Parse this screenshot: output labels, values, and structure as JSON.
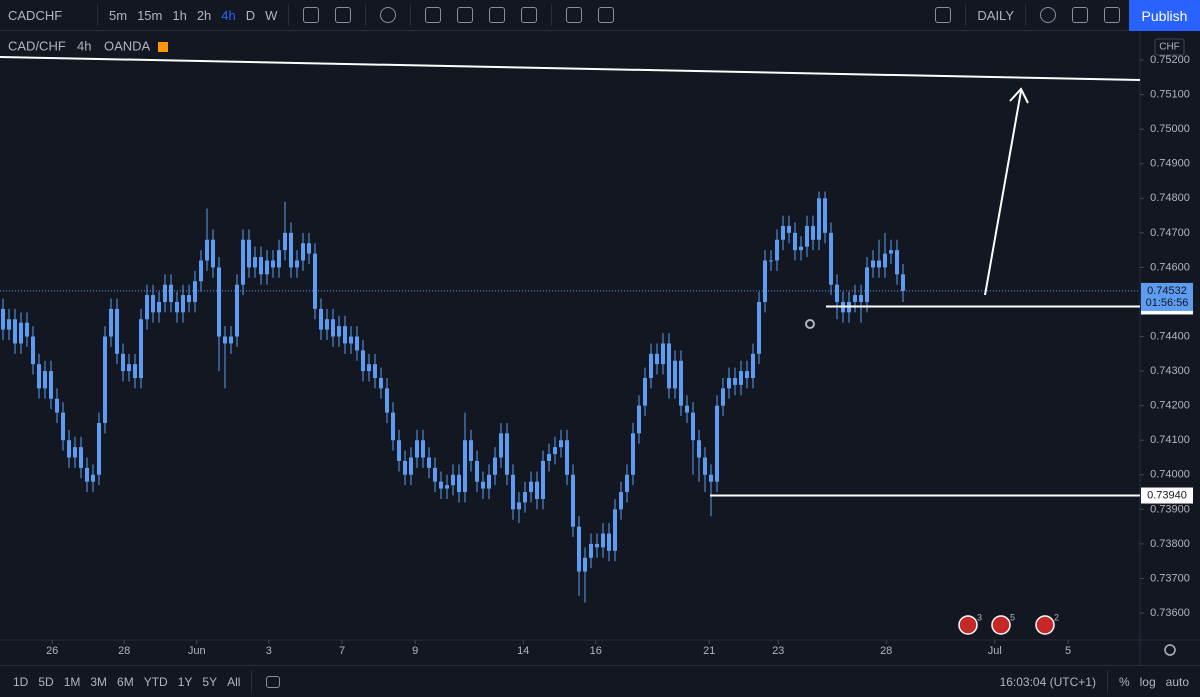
{
  "toolbar": {
    "symbol": "CADCHF",
    "intervals": [
      "5m",
      "15m",
      "1h",
      "2h",
      "4h",
      "D",
      "W"
    ],
    "layout_name": "DAILY",
    "publish": "Publish"
  },
  "legend": {
    "symbol": "CAD/CHF",
    "interval": "4h",
    "source": "OANDA"
  },
  "chart_data": {
    "type": "candlestick",
    "color": "#5d9cf0",
    "currency": "CHF",
    "open": [
      0.7448,
      0.7442,
      0.7445,
      0.7438,
      0.7444,
      0.744,
      0.7432,
      0.7425,
      0.743,
      0.7422,
      0.7418,
      0.741,
      0.7405,
      0.7408,
      0.7402,
      0.7398,
      0.74,
      0.7415,
      0.744,
      0.7448,
      0.7435,
      0.743,
      0.7432,
      0.7428,
      0.7445,
      0.7452,
      0.7447,
      0.745,
      0.7455,
      0.745,
      0.7447,
      0.7452,
      0.745,
      0.7456,
      0.7462,
      0.7468,
      0.746,
      0.744,
      0.7438,
      0.744,
      0.7455,
      0.7468,
      0.746,
      0.7463,
      0.7458,
      0.7462,
      0.746,
      0.7465,
      0.747,
      0.746,
      0.7462,
      0.7467,
      0.7464,
      0.7448,
      0.7442,
      0.7445,
      0.744,
      0.7443,
      0.7438,
      0.744,
      0.7436,
      0.743,
      0.7432,
      0.7428,
      0.7425,
      0.7418,
      0.741,
      0.7404,
      0.74,
      0.7405,
      0.741,
      0.7405,
      0.7402,
      0.7398,
      0.7396,
      0.7397,
      0.74,
      0.7395,
      0.741,
      0.7404,
      0.7398,
      0.7396,
      0.74,
      0.7405,
      0.7412,
      0.74,
      0.739,
      0.7392,
      0.7395,
      0.7398,
      0.7393,
      0.7404,
      0.7406,
      0.7408,
      0.741,
      0.74,
      0.7385,
      0.7372,
      0.7376,
      0.738,
      0.7379,
      0.7383,
      0.7378,
      0.739,
      0.7395,
      0.74,
      0.7412,
      0.742,
      0.7428,
      0.7435,
      0.7432,
      0.7438,
      0.7425,
      0.7433,
      0.742,
      0.7418,
      0.741,
      0.7405,
      0.74,
      0.7398,
      0.742,
      0.7425,
      0.7428,
      0.7426,
      0.743,
      0.7428,
      0.7435,
      0.745,
      0.7462,
      0.7462,
      0.7468,
      0.7472,
      0.747,
      0.7465,
      0.7466,
      0.7472,
      0.7468,
      0.748,
      0.747,
      0.7455,
      0.745,
      0.7447,
      0.745,
      0.7452,
      0.745,
      0.746,
      0.7462,
      0.746,
      0.7464,
      0.7465,
      0.7458
    ],
    "high": [
      0.7451,
      0.7448,
      0.7448,
      0.7447,
      0.7447,
      0.7443,
      0.7435,
      0.7433,
      0.7433,
      0.7425,
      0.7421,
      0.7413,
      0.7411,
      0.7411,
      0.7405,
      0.7403,
      0.7418,
      0.7443,
      0.7451,
      0.7451,
      0.7438,
      0.7435,
      0.7435,
      0.7448,
      0.7455,
      0.7455,
      0.7453,
      0.7458,
      0.7458,
      0.7453,
      0.7455,
      0.7455,
      0.7459,
      0.7465,
      0.7477,
      0.7471,
      0.7463,
      0.7443,
      0.7443,
      0.7458,
      0.7471,
      0.7471,
      0.7466,
      0.7466,
      0.7465,
      0.7465,
      0.7468,
      0.7479,
      0.7473,
      0.7465,
      0.747,
      0.747,
      0.7467,
      0.7451,
      0.7448,
      0.7448,
      0.7446,
      0.7446,
      0.7443,
      0.7443,
      0.7439,
      0.7435,
      0.7435,
      0.7431,
      0.7428,
      0.7421,
      0.7413,
      0.7407,
      0.7408,
      0.7413,
      0.7413,
      0.7408,
      0.7405,
      0.7401,
      0.74,
      0.7403,
      0.7403,
      0.7418,
      0.7413,
      0.7407,
      0.7401,
      0.7403,
      0.7408,
      0.7415,
      0.7415,
      0.7403,
      0.7395,
      0.7398,
      0.7401,
      0.7401,
      0.7407,
      0.7409,
      0.7411,
      0.7413,
      0.7413,
      0.7403,
      0.7388,
      0.7379,
      0.7383,
      0.7383,
      0.7386,
      0.7386,
      0.7393,
      0.7398,
      0.7403,
      0.7415,
      0.7423,
      0.7431,
      0.7438,
      0.7438,
      0.7441,
      0.7441,
      0.7436,
      0.7436,
      0.7423,
      0.7421,
      0.7413,
      0.7408,
      0.7403,
      0.7423,
      0.7428,
      0.7431,
      0.7431,
      0.7433,
      0.7433,
      0.7438,
      0.7453,
      0.7465,
      0.7465,
      0.7471,
      0.7475,
      0.7475,
      0.7473,
      0.7469,
      0.7475,
      0.7475,
      0.7482,
      0.7482,
      0.7473,
      0.7458,
      0.7453,
      0.7453,
      0.7455,
      0.7455,
      0.7463,
      0.7465,
      0.7468,
      0.747,
      0.7468,
      0.7468,
      0.7461
    ],
    "low": [
      0.7439,
      0.7439,
      0.7435,
      0.7435,
      0.7437,
      0.7429,
      0.7422,
      0.7422,
      0.7419,
      0.7415,
      0.7407,
      0.7402,
      0.7402,
      0.7399,
      0.7395,
      0.7395,
      0.7397,
      0.7412,
      0.7437,
      0.7432,
      0.7427,
      0.7427,
      0.7425,
      0.7425,
      0.7442,
      0.7444,
      0.7444,
      0.7447,
      0.7447,
      0.7444,
      0.7444,
      0.7447,
      0.7447,
      0.7453,
      0.7459,
      0.7457,
      0.743,
      0.7425,
      0.7435,
      0.7437,
      0.7452,
      0.7457,
      0.7457,
      0.7455,
      0.7455,
      0.7457,
      0.7457,
      0.7462,
      0.7457,
      0.7457,
      0.7459,
      0.7461,
      0.7445,
      0.7439,
      0.7439,
      0.7437,
      0.7437,
      0.7435,
      0.7435,
      0.7433,
      0.7427,
      0.7427,
      0.7425,
      0.7422,
      0.7415,
      0.7407,
      0.7401,
      0.7397,
      0.7397,
      0.7402,
      0.7402,
      0.7399,
      0.7395,
      0.7393,
      0.7393,
      0.7394,
      0.7392,
      0.7392,
      0.7401,
      0.7395,
      0.7393,
      0.7393,
      0.7397,
      0.7402,
      0.7397,
      0.7387,
      0.7386,
      0.7389,
      0.7392,
      0.739,
      0.739,
      0.7401,
      0.7403,
      0.7405,
      0.7397,
      0.7382,
      0.7365,
      0.7363,
      0.7373,
      0.7376,
      0.7376,
      0.7375,
      0.7375,
      0.7387,
      0.7392,
      0.7397,
      0.7409,
      0.7417,
      0.7425,
      0.7429,
      0.7429,
      0.7422,
      0.7422,
      0.7417,
      0.7415,
      0.74,
      0.7398,
      0.7395,
      0.7388,
      0.7395,
      0.7417,
      0.7422,
      0.7423,
      0.7423,
      0.7425,
      0.7425,
      0.7432,
      0.7447,
      0.7459,
      0.7459,
      0.7465,
      0.7467,
      0.7462,
      0.7462,
      0.7463,
      0.7465,
      0.7465,
      0.7467,
      0.7452,
      0.7445,
      0.7444,
      0.7444,
      0.7447,
      0.7444,
      0.7447,
      0.7457,
      0.7457,
      0.7457,
      0.7461,
      0.7455,
      0.745
    ],
    "close": [
      0.7442,
      0.7445,
      0.7438,
      0.7444,
      0.744,
      0.7432,
      0.7425,
      0.743,
      0.7422,
      0.7418,
      0.741,
      0.7405,
      0.7408,
      0.7402,
      0.7398,
      0.74,
      0.7415,
      0.744,
      0.7448,
      0.7435,
      0.743,
      0.7432,
      0.7428,
      0.7445,
      0.7452,
      0.7447,
      0.745,
      0.7455,
      0.745,
      0.7447,
      0.7452,
      0.745,
      0.7456,
      0.7462,
      0.7468,
      0.746,
      0.744,
      0.7438,
      0.744,
      0.7455,
      0.7468,
      0.746,
      0.7463,
      0.7458,
      0.7462,
      0.746,
      0.7465,
      0.747,
      0.746,
      0.7462,
      0.7467,
      0.7464,
      0.7448,
      0.7442,
      0.7445,
      0.744,
      0.7443,
      0.7438,
      0.744,
      0.7436,
      0.743,
      0.7432,
      0.7428,
      0.7425,
      0.7418,
      0.741,
      0.7404,
      0.74,
      0.7405,
      0.741,
      0.7405,
      0.7402,
      0.7398,
      0.7396,
      0.7397,
      0.74,
      0.7395,
      0.741,
      0.7404,
      0.7398,
      0.7396,
      0.74,
      0.7405,
      0.7412,
      0.74,
      0.739,
      0.7392,
      0.7395,
      0.7398,
      0.7393,
      0.7404,
      0.7406,
      0.7408,
      0.741,
      0.74,
      0.7385,
      0.7372,
      0.7376,
      0.738,
      0.7379,
      0.7383,
      0.7378,
      0.739,
      0.7395,
      0.74,
      0.7412,
      0.742,
      0.7428,
      0.7435,
      0.7432,
      0.7438,
      0.7425,
      0.7433,
      0.742,
      0.7418,
      0.741,
      0.7405,
      0.74,
      0.7398,
      0.742,
      0.7425,
      0.7428,
      0.7426,
      0.743,
      0.7428,
      0.7435,
      0.745,
      0.7462,
      0.7462,
      0.7468,
      0.7472,
      0.747,
      0.7465,
      0.7466,
      0.7472,
      0.7468,
      0.748,
      0.747,
      0.7455,
      0.745,
      0.7447,
      0.745,
      0.7452,
      0.745,
      0.746,
      0.7462,
      0.746,
      0.7464,
      0.7465,
      0.7458,
      0.74532
    ],
    "xlim": [
      -0.5,
      189.5
    ],
    "xticks": [
      {
        "value": 8.2,
        "label": "26"
      },
      {
        "value": 20.2,
        "label": "28"
      },
      {
        "value": 32.3,
        "label": "Jun"
      },
      {
        "value": 44.3,
        "label": "3"
      },
      {
        "value": 56.5,
        "label": "7"
      },
      {
        "value": 68.7,
        "label": "9"
      },
      {
        "value": 86.7,
        "label": "14"
      },
      {
        "value": 98.8,
        "label": "16"
      },
      {
        "value": 117.7,
        "label": "21"
      },
      {
        "value": 129.2,
        "label": "23"
      },
      {
        "value": 147.2,
        "label": "28"
      },
      {
        "value": 165.3,
        "label": "Jul"
      },
      {
        "value": 177.5,
        "label": "5"
      }
    ],
    "ylim": [
      0.73522,
      0.75284
    ],
    "yticks": [
      {
        "value": 0.752,
        "label": "0.75200"
      },
      {
        "value": 0.751,
        "label": "0.75100"
      },
      {
        "value": 0.75,
        "label": "0.75000"
      },
      {
        "value": 0.749,
        "label": "0.74900"
      },
      {
        "value": 0.748,
        "label": "0.74800"
      },
      {
        "value": 0.747,
        "label": "0.74700"
      },
      {
        "value": 0.746,
        "label": "0.74600"
      },
      {
        "value": 0.745,
        "label": "0.74500"
      },
      {
        "value": 0.744,
        "label": "0.74400"
      },
      {
        "value": 0.743,
        "label": "0.74300"
      },
      {
        "value": 0.742,
        "label": "0.74200"
      },
      {
        "value": 0.741,
        "label": "0.74100"
      },
      {
        "value": 0.74,
        "label": "0.74000"
      },
      {
        "value": 0.739,
        "label": "0.73900"
      },
      {
        "value": 0.738,
        "label": "0.73800"
      },
      {
        "value": 0.737,
        "label": "0.73700"
      },
      {
        "value": 0.736,
        "label": "0.73600"
      }
    ],
    "last_price": 0.74532,
    "countdown": "01:56:56",
    "levels": [
      0.74487,
      {
        "value": 0.7394,
        "label": "0.73940"
      }
    ],
    "event_counts": [
      3,
      5,
      2
    ]
  },
  "bottom_bar": {
    "ranges": [
      "1D",
      "5D",
      "1M",
      "3M",
      "6M",
      "YTD",
      "1Y",
      "5Y",
      "All"
    ],
    "clock": "16:03:04 (UTC+1)",
    "options": [
      "%",
      "log",
      "auto"
    ]
  }
}
